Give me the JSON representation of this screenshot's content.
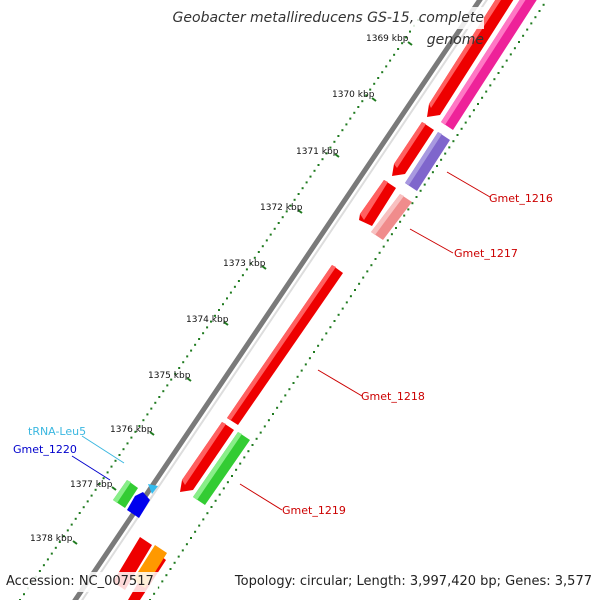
{
  "title": "Geobacter metallireducens GS-15, complete genome",
  "accession": "Accession: NC_007517",
  "topology": "Topology: circular; Length: 3,997,420 bp; Genes: 3,577",
  "colors": {
    "backbone": "#7a7a7a",
    "ticks": "#1f7a1f",
    "tick_label": "#111111",
    "gene_label": "#cc0000",
    "rna_label": "#3ab7e0",
    "gmet1220_label": "#0000cc"
  },
  "scale_labels": [
    "1369 kbp",
    "1370 kbp",
    "1371 kbp",
    "1372 kbp",
    "1373 kbp",
    "1374 kbp",
    "1375 kbp",
    "1376 kbp",
    "1377 kbp",
    "1378 kbp"
  ],
  "features": [
    {
      "label": "Gmet_1216",
      "color": "#8060c8"
    },
    {
      "label": "Gmet_1217",
      "color": "#f09090"
    },
    {
      "label": "Gmet_1218",
      "color": "#ee0000"
    },
    {
      "label": "Gmet_1219",
      "color": "#33cc33"
    },
    {
      "label": "tRNA-Leu5",
      "color": "#33bbee"
    },
    {
      "label": "Gmet_1220",
      "color": "#0000ee"
    }
  ],
  "tracks": {
    "outer_pink": "#ee2299",
    "cds_red": "#ee0000",
    "green_feature": "#33cc33",
    "orange_feature": "#ff9900"
  }
}
